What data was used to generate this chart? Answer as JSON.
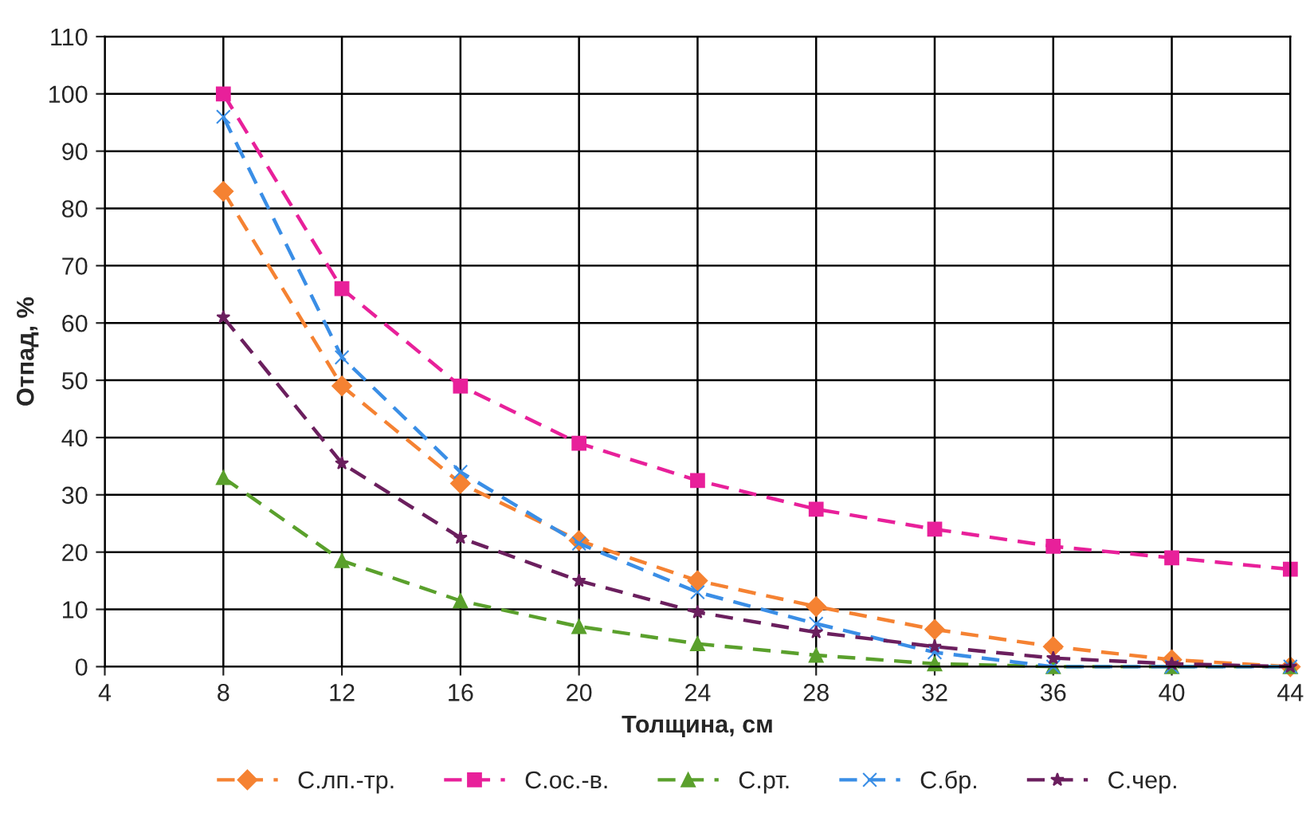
{
  "chart_data": {
    "type": "line",
    "xlabel": "Толщина, см",
    "ylabel": "Отпад, %",
    "x": [
      8,
      12,
      16,
      20,
      24,
      28,
      32,
      36,
      40,
      44
    ],
    "xlim": [
      4,
      44
    ],
    "xticks": [
      4,
      8,
      12,
      16,
      20,
      24,
      28,
      32,
      36,
      40,
      44
    ],
    "ylim": [
      0,
      110
    ],
    "yticks": [
      0,
      10,
      20,
      30,
      40,
      50,
      60,
      70,
      80,
      90,
      100,
      110
    ],
    "grid": true,
    "legend": "bottom",
    "line_style": "dashed",
    "series": [
      {
        "name": "С.лп.-тр.",
        "color": "#f58232",
        "marker": "diamond",
        "values": [
          83,
          49,
          32,
          22,
          15,
          10.5,
          6.5,
          3.5,
          1.2,
          0
        ]
      },
      {
        "name": "С.ос.-в.",
        "color": "#e8209a",
        "marker": "square",
        "values": [
          100,
          66,
          49,
          39,
          32.5,
          27.5,
          24,
          21,
          19,
          17
        ]
      },
      {
        "name": "С.рт.",
        "color": "#5aa02c",
        "marker": "triangle",
        "values": [
          33,
          18.5,
          11.5,
          7,
          4,
          2,
          0.5,
          0,
          0,
          0
        ]
      },
      {
        "name": "С.бр.",
        "color": "#3a8ee6",
        "marker": "cross",
        "values": [
          96,
          54,
          34,
          21.5,
          13,
          7.5,
          2.5,
          0,
          0,
          0
        ]
      },
      {
        "name": "С.чер.",
        "color": "#6b1f5e",
        "marker": "star",
        "values": [
          61,
          35.5,
          22.5,
          15,
          9.5,
          6,
          3.5,
          1.5,
          0.5,
          0
        ]
      }
    ]
  }
}
